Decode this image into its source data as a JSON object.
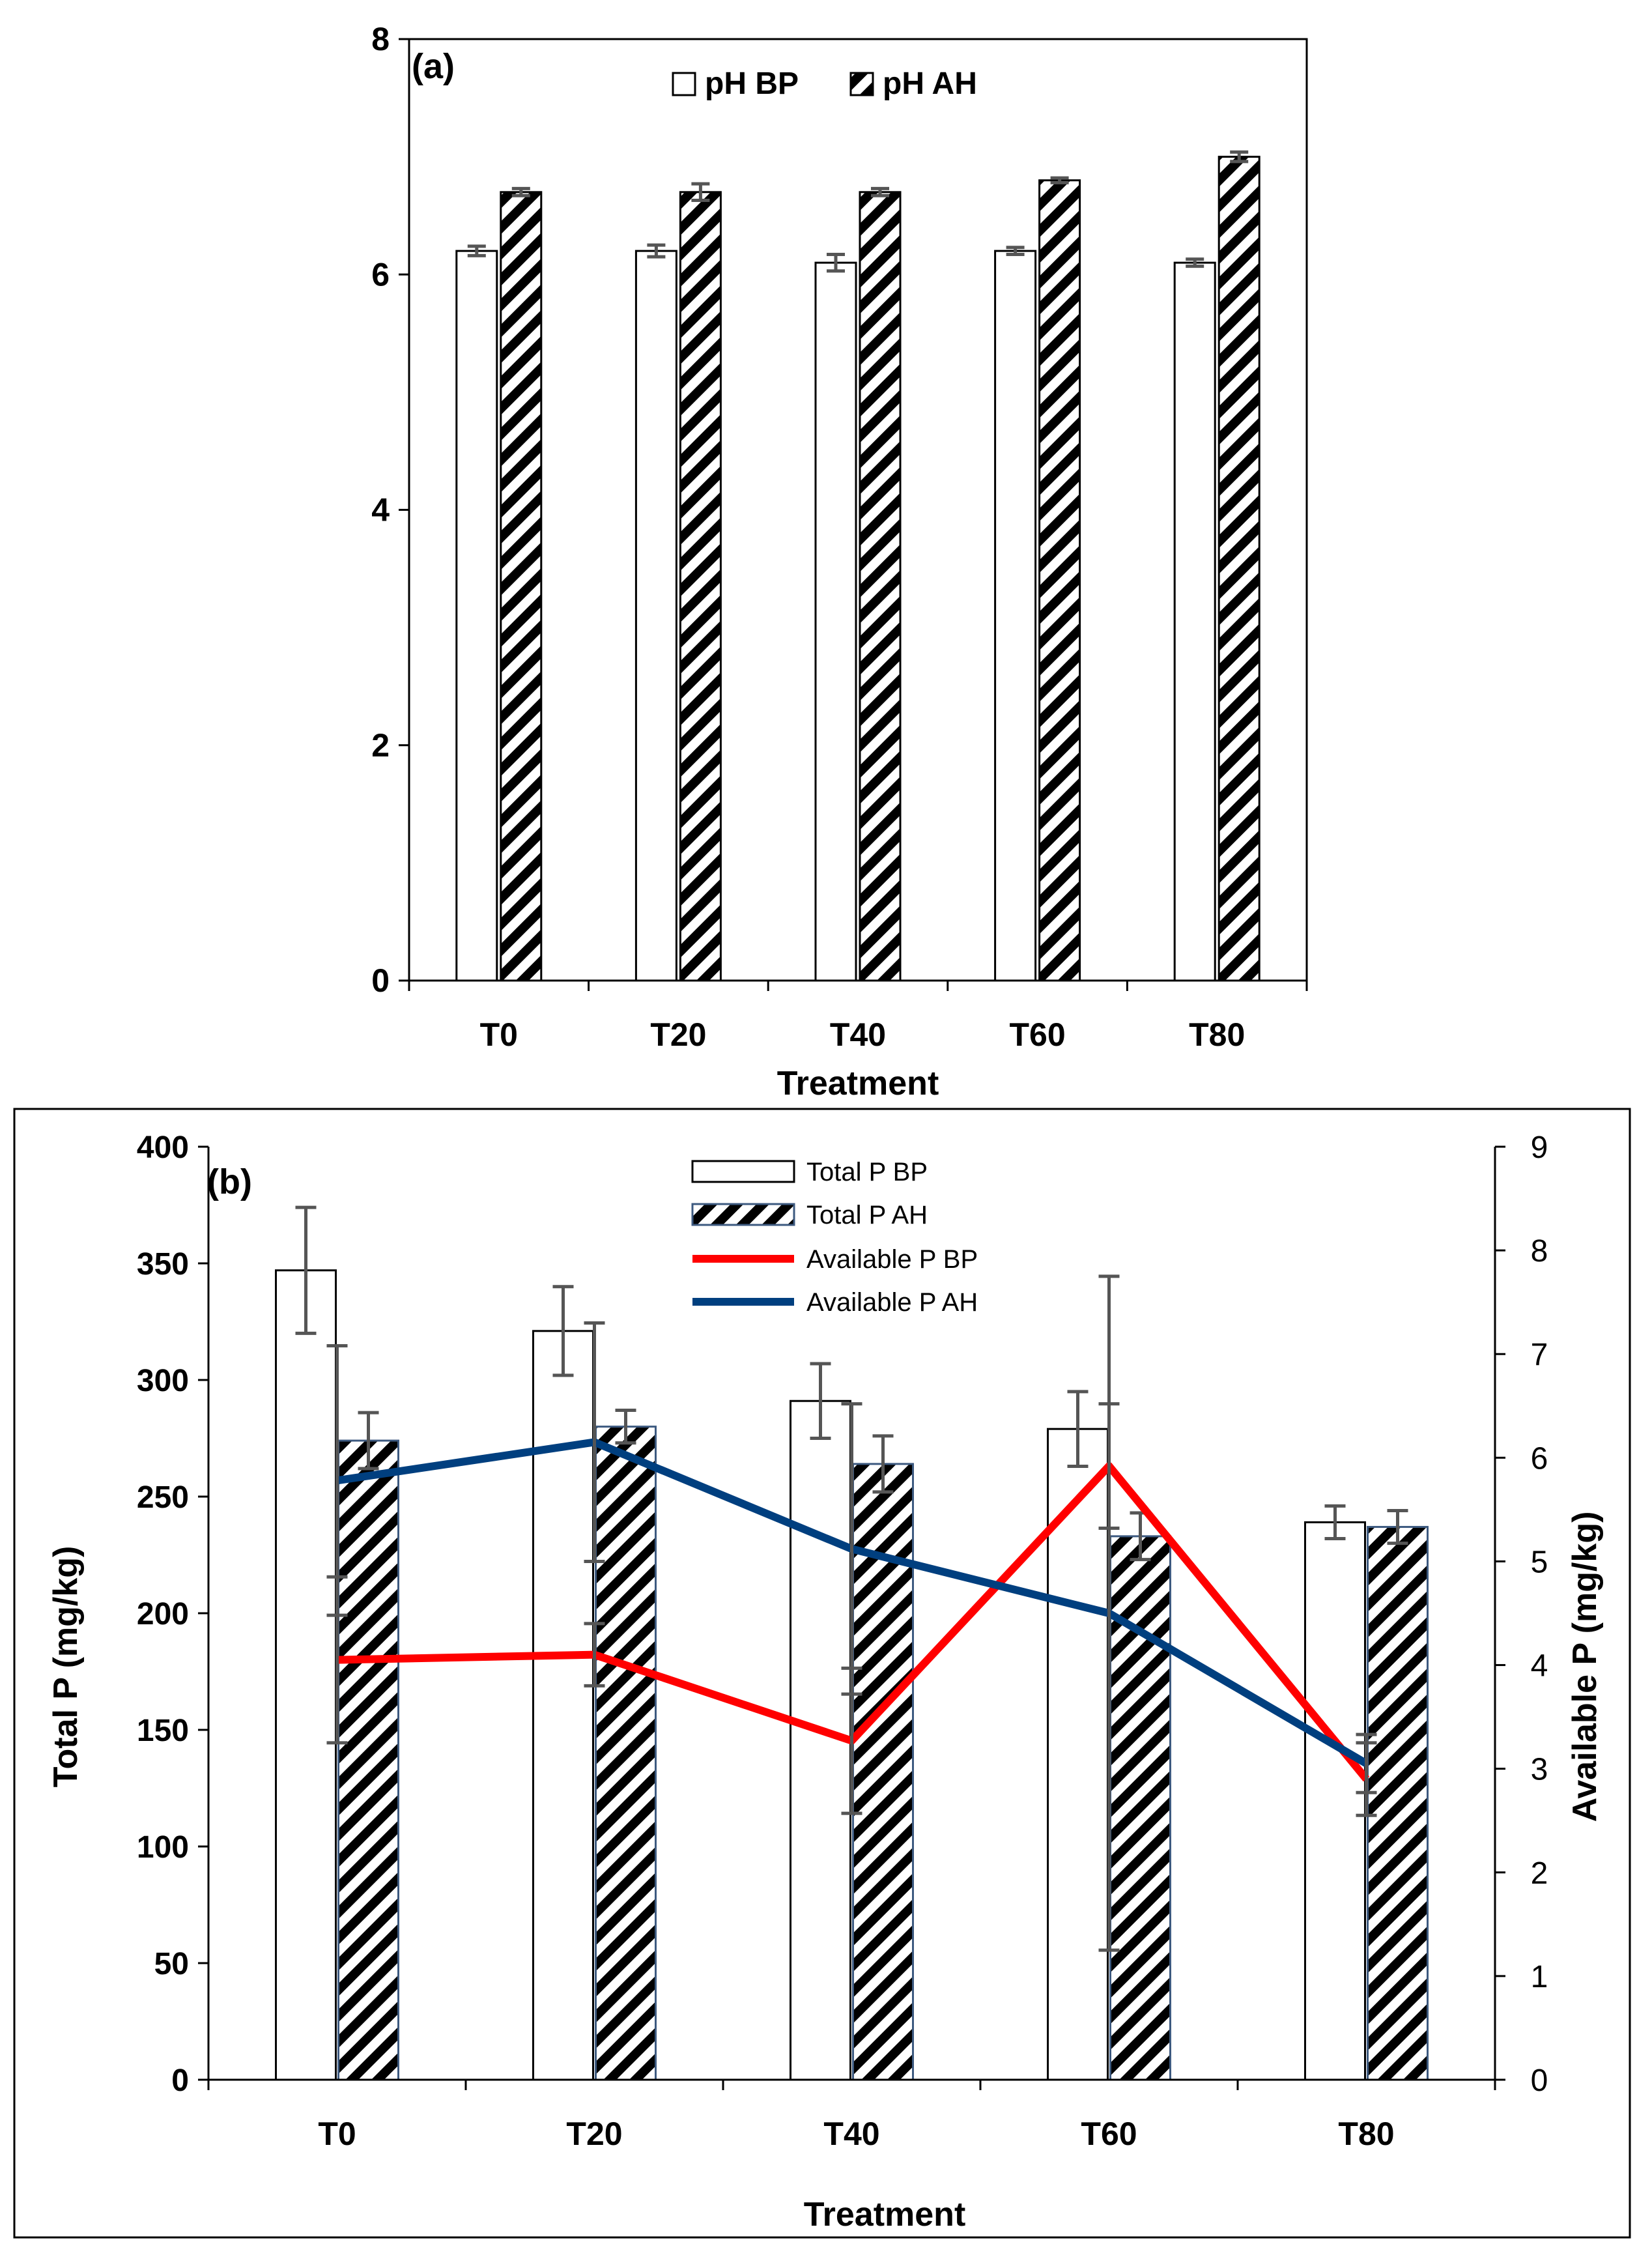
{
  "chart_data": [
    {
      "type": "bar",
      "panel_label": "(a)",
      "title": "",
      "xlabel": "Treatment",
      "ylabel": "",
      "categories": [
        "T0",
        "T20",
        "T40",
        "T60",
        "T80"
      ],
      "ylim": [
        0,
        8
      ],
      "yticks": [
        "0",
        "2",
        "4",
        "6",
        "8"
      ],
      "legend_position": "top-center",
      "grid": false,
      "series": [
        {
          "name": "pH BP",
          "pattern": "white",
          "values": [
            6.2,
            6.2,
            6.1,
            6.2,
            6.1
          ],
          "errors": [
            0.04,
            0.05,
            0.07,
            0.03,
            0.03
          ]
        },
        {
          "name": "pH AH",
          "pattern": "hatch",
          "values": [
            6.7,
            6.7,
            6.7,
            6.8,
            7.0
          ],
          "errors": [
            0.03,
            0.07,
            0.03,
            0.02,
            0.04
          ]
        }
      ]
    },
    {
      "type": "bar",
      "panel_label": "(b)",
      "title": "",
      "xlabel": "Treatment",
      "ylabel": "Total P (mg/kg)",
      "y2label": "Available P (mg/kg)",
      "categories": [
        "T0",
        "T20",
        "T40",
        "T60",
        "T80"
      ],
      "ylim": [
        0,
        400
      ],
      "yticks": [
        "0",
        "50",
        "100",
        "150",
        "200",
        "250",
        "300",
        "350",
        "400"
      ],
      "y2lim": [
        0,
        9
      ],
      "y2ticks": [
        "0",
        "1",
        "2",
        "3",
        "4",
        "5",
        "6",
        "7",
        "8",
        "9"
      ],
      "legend_position": "top-center",
      "grid": false,
      "bar_series": [
        {
          "name": "Total P  BP",
          "pattern": "white",
          "values": [
            347,
            321,
            291,
            279,
            239
          ],
          "errors": [
            27,
            19,
            16,
            16,
            7
          ]
        },
        {
          "name": "Total P  AH",
          "pattern": "hatch",
          "values": [
            274,
            280,
            264,
            233,
            237
          ],
          "errors": [
            12,
            7,
            12,
            10,
            7
          ]
        }
      ],
      "line_series": [
        {
          "name": "Available P  BP",
          "color": "#ff0000",
          "axis": "right",
          "values": [
            4.05,
            4.1,
            3.27,
            5.92,
            2.9
          ],
          "errors": [
            0.8,
            0.3,
            0.7,
            0.6,
            0.35
          ]
        },
        {
          "name": "Available P  AH",
          "color": "#003f7f",
          "axis": "right",
          "values": [
            5.78,
            6.15,
            5.12,
            4.5,
            3.05
          ],
          "errors": [
            1.3,
            1.15,
            1.4,
            3.25,
            0.28
          ]
        }
      ]
    }
  ]
}
